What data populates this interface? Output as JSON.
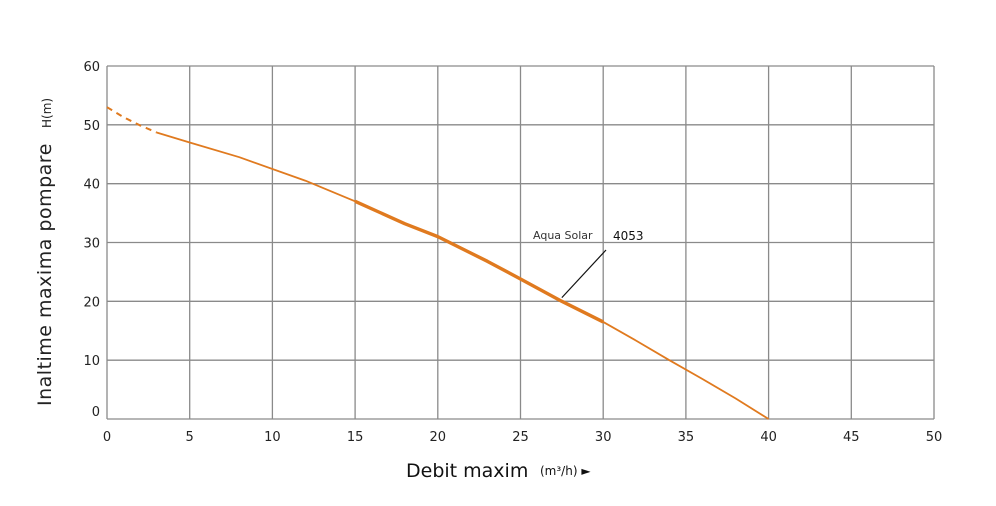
{
  "chart_data": {
    "type": "line",
    "xlabel": "Debit maxim",
    "xunit": "(m³/h) ►",
    "ylabel": "Inaltime maxima pompare",
    "yunit": "H(m)",
    "xlim": [
      0,
      50
    ],
    "ylim": [
      0,
      60
    ],
    "x_ticks": [
      "0",
      "5",
      "10",
      "15",
      "20",
      "25",
      "30",
      "35",
      "40",
      "45",
      "50"
    ],
    "y_ticks": [
      "0",
      "10",
      "20",
      "30",
      "40",
      "50",
      "60"
    ],
    "grid": true,
    "line_color": "#e07a1f",
    "series": [
      {
        "dashed_segment": {
          "x": [
            0,
            1,
            2,
            3
          ],
          "y": [
            53,
            51.3,
            49.9,
            48.7
          ]
        },
        "values": {
          "x": [
            3,
            5,
            8,
            12,
            15,
            18,
            20,
            23,
            25,
            27.5,
            30,
            32,
            34,
            36,
            38,
            40
          ],
          "y": [
            48.7,
            47,
            44.5,
            40.5,
            37,
            33.2,
            31,
            26.8,
            23.8,
            20,
            16.5,
            13.3,
            10,
            6.8,
            3.5,
            0
          ]
        },
        "bold_range": [
          15,
          30
        ]
      }
    ],
    "annotation": {
      "series_label": "Aqua Solar",
      "model_label": "4053",
      "pointer_target": {
        "x": 27.5,
        "y": 22.5
      }
    }
  }
}
